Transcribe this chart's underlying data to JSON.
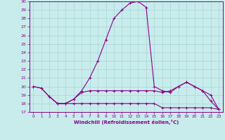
{
  "xlabel": "Windchill (Refroidissement éolien,°C)",
  "background_color": "#c8ecec",
  "grid_color": "#aad4d4",
  "line_color": "#880088",
  "spine_color": "#880088",
  "xlim": [
    -0.5,
    23.5
  ],
  "ylim": [
    17,
    30
  ],
  "yticks": [
    17,
    18,
    19,
    20,
    21,
    22,
    23,
    24,
    25,
    26,
    27,
    28,
    29,
    30
  ],
  "xticks": [
    0,
    1,
    2,
    3,
    4,
    5,
    6,
    7,
    8,
    9,
    10,
    11,
    12,
    13,
    14,
    15,
    16,
    17,
    18,
    19,
    20,
    21,
    22,
    23
  ],
  "line1_x": [
    0,
    1,
    2,
    3,
    4,
    5,
    6,
    7,
    8,
    9,
    10,
    11,
    12,
    13,
    14,
    15,
    16,
    17,
    18,
    19,
    20,
    21,
    22,
    23
  ],
  "line1_y": [
    20.0,
    19.8,
    18.8,
    18.0,
    18.0,
    18.5,
    19.5,
    21.0,
    23.0,
    25.5,
    28.0,
    29.0,
    29.8,
    30.0,
    29.3,
    20.0,
    19.5,
    19.3,
    20.0,
    20.5,
    20.0,
    19.5,
    18.3,
    17.3
  ],
  "line2_x": [
    0,
    1,
    2,
    3,
    4,
    5,
    6,
    7,
    8,
    9,
    10,
    11,
    12,
    13,
    14,
    15,
    16,
    17,
    18,
    19,
    20,
    21,
    22,
    23
  ],
  "line2_y": [
    20.0,
    19.8,
    18.8,
    18.0,
    18.0,
    18.5,
    19.3,
    19.5,
    19.5,
    19.5,
    19.5,
    19.5,
    19.5,
    19.5,
    19.5,
    19.5,
    19.3,
    19.5,
    20.0,
    20.5,
    20.0,
    19.5,
    19.0,
    17.3
  ],
  "line3_x": [
    2,
    3,
    4,
    5,
    6,
    7,
    8,
    9,
    10,
    11,
    12,
    13,
    14,
    15,
    16,
    17,
    18,
    19,
    20,
    21,
    22,
    23
  ],
  "line3_y": [
    18.8,
    18.0,
    18.0,
    18.0,
    18.0,
    18.0,
    18.0,
    18.0,
    18.0,
    18.0,
    18.0,
    18.0,
    18.0,
    18.0,
    17.5,
    17.5,
    17.5,
    17.5,
    17.5,
    17.5,
    17.5,
    17.3
  ]
}
